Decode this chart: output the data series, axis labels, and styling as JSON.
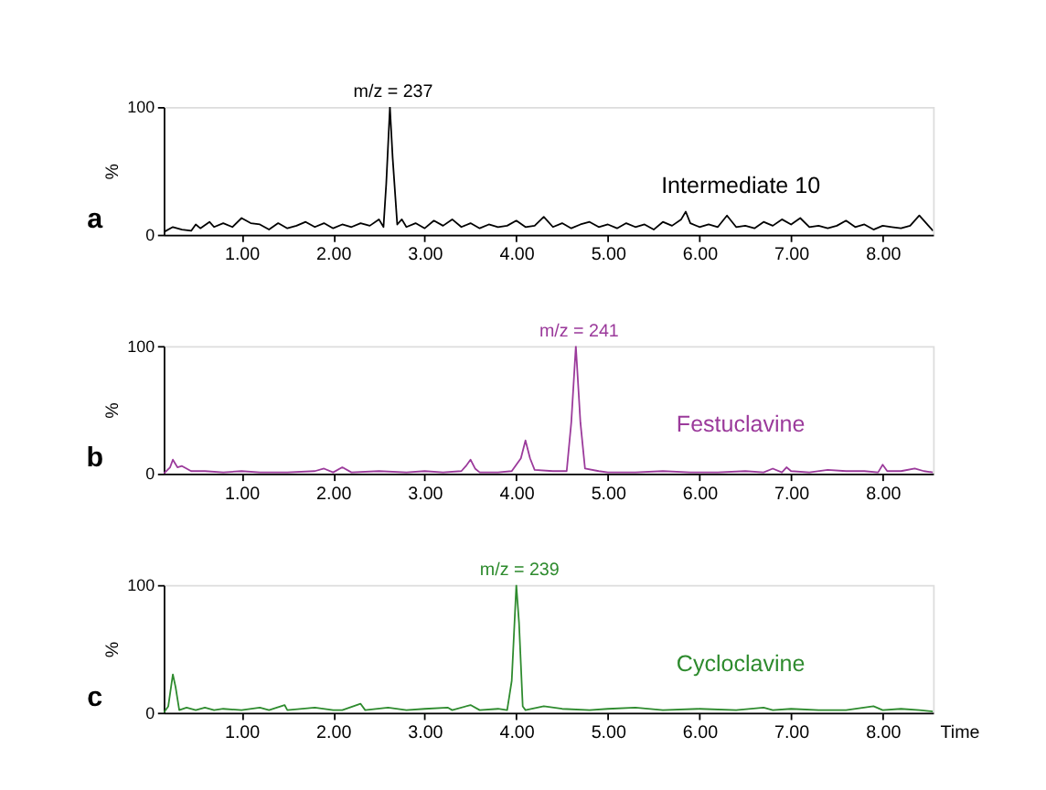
{
  "chart_data": [
    {
      "type": "line",
      "ylabel": "%",
      "xlim": [
        0.15,
        8.55
      ],
      "ylim": [
        0,
        100
      ],
      "yticks": [
        0,
        100
      ],
      "grid": false,
      "marker": "none",
      "xticks": [
        {
          "value": 1,
          "label": "1.00"
        },
        {
          "value": 2,
          "label": "2.00"
        },
        {
          "value": 3,
          "label": "3.00"
        },
        {
          "value": 4,
          "label": "4.00"
        },
        {
          "value": 5,
          "label": "5.00"
        },
        {
          "value": 6,
          "label": "6.00"
        },
        {
          "value": 7,
          "label": "7.00"
        },
        {
          "value": 8,
          "label": "8.00"
        }
      ],
      "x": [
        0.15,
        0.25,
        0.35,
        0.45,
        0.5,
        0.55,
        0.65,
        0.7,
        0.8,
        0.9,
        1.0,
        1.1,
        1.2,
        1.3,
        1.4,
        1.5,
        1.6,
        1.7,
        1.8,
        1.9,
        2.0,
        2.1,
        2.2,
        2.3,
        2.4,
        2.5,
        2.55,
        2.58,
        2.62,
        2.65,
        2.7,
        2.75,
        2.8,
        2.9,
        3.0,
        3.1,
        3.2,
        3.3,
        3.4,
        3.5,
        3.6,
        3.7,
        3.8,
        3.9,
        4.0,
        4.1,
        4.2,
        4.3,
        4.4,
        4.5,
        4.6,
        4.7,
        4.8,
        4.9,
        5.0,
        5.1,
        5.2,
        5.3,
        5.4,
        5.5,
        5.6,
        5.7,
        5.8,
        5.85,
        5.9,
        6.0,
        6.1,
        6.2,
        6.3,
        6.4,
        6.5,
        6.6,
        6.7,
        6.8,
        6.9,
        7.0,
        7.1,
        7.2,
        7.3,
        7.4,
        7.5,
        7.6,
        7.7,
        7.8,
        7.9,
        8.0,
        8.1,
        8.2,
        8.3,
        8.4,
        8.5,
        8.55
      ],
      "series": [
        {
          "color": "#000000",
          "values": [
            2,
            6,
            4,
            3,
            8,
            5,
            10,
            6,
            9,
            6,
            13,
            9,
            8,
            4,
            9,
            5,
            7,
            10,
            6,
            9,
            5,
            8,
            6,
            9,
            7,
            12,
            6,
            40,
            100,
            60,
            8,
            12,
            6,
            9,
            5,
            11,
            7,
            12,
            6,
            9,
            5,
            8,
            6,
            7,
            11,
            6,
            7,
            14,
            6,
            9,
            5,
            8,
            10,
            6,
            8,
            5,
            9,
            6,
            8,
            4,
            10,
            7,
            12,
            18,
            9,
            6,
            8,
            6,
            15,
            6,
            7,
            5,
            10,
            7,
            12,
            8,
            13,
            6,
            7,
            5,
            7,
            11,
            6,
            8,
            4,
            7,
            6,
            5,
            7,
            15,
            7,
            3
          ]
        }
      ],
      "annotations": [
        {
          "text": "m/z = 237",
          "x": 2.62,
          "y": 100
        },
        "Intermediate 10",
        "a"
      ]
    },
    {
      "type": "line",
      "ylabel": "%",
      "xlim": [
        0.15,
        8.55
      ],
      "ylim": [
        0,
        100
      ],
      "yticks": [
        0,
        100
      ],
      "grid": false,
      "marker": "none",
      "xticks": [
        {
          "value": 1,
          "label": "1.00"
        },
        {
          "value": 2,
          "label": "2.00"
        },
        {
          "value": 3,
          "label": "3.00"
        },
        {
          "value": 4,
          "label": "4.00"
        },
        {
          "value": 5,
          "label": "5.00"
        },
        {
          "value": 6,
          "label": "6.00"
        },
        {
          "value": 7,
          "label": "7.00"
        },
        {
          "value": 8,
          "label": "8.00"
        }
      ],
      "x": [
        0.15,
        0.22,
        0.25,
        0.3,
        0.35,
        0.45,
        0.6,
        0.8,
        1.0,
        1.2,
        1.5,
        1.8,
        1.9,
        2.0,
        2.1,
        2.2,
        2.5,
        2.8,
        3.0,
        3.2,
        3.4,
        3.45,
        3.5,
        3.55,
        3.6,
        3.8,
        3.95,
        4.05,
        4.1,
        4.15,
        4.2,
        4.4,
        4.55,
        4.6,
        4.65,
        4.7,
        4.75,
        4.9,
        5.0,
        5.3,
        5.6,
        5.9,
        6.2,
        6.5,
        6.7,
        6.8,
        6.9,
        6.95,
        7.0,
        7.2,
        7.4,
        7.6,
        7.8,
        7.95,
        8.0,
        8.05,
        8.2,
        8.35,
        8.45,
        8.55
      ],
      "series": [
        {
          "color": "#9b3a9b",
          "values": [
            0,
            5,
            11,
            5,
            6,
            2,
            2,
            1,
            2,
            1,
            1,
            2,
            4,
            1,
            5,
            1,
            2,
            1,
            2,
            1,
            2,
            6,
            11,
            4,
            1,
            1,
            2,
            12,
            26,
            12,
            3,
            2,
            2,
            40,
            100,
            40,
            4,
            2,
            1,
            1,
            2,
            1,
            1,
            2,
            1,
            4,
            1,
            5,
            2,
            1,
            3,
            2,
            2,
            1,
            7,
            2,
            2,
            4,
            2,
            1
          ]
        }
      ],
      "annotations": [
        {
          "text": "m/z = 241",
          "x": 4.65,
          "y": 100
        },
        "Festuclavine",
        "b"
      ]
    },
    {
      "type": "line",
      "ylabel": "%",
      "xlabel": "Time",
      "xlim": [
        0.15,
        8.55
      ],
      "ylim": [
        0,
        100
      ],
      "yticks": [
        0,
        100
      ],
      "grid": false,
      "marker": "none",
      "xticks": [
        {
          "value": 1,
          "label": "1.00"
        },
        {
          "value": 2,
          "label": "2.00"
        },
        {
          "value": 3,
          "label": "3.00"
        },
        {
          "value": 4,
          "label": "4.00"
        },
        {
          "value": 5,
          "label": "5.00"
        },
        {
          "value": 6,
          "label": "6.00"
        },
        {
          "value": 7,
          "label": "7.00"
        },
        {
          "value": 8,
          "label": "8.00"
        }
      ],
      "x": [
        0.15,
        0.2,
        0.25,
        0.28,
        0.32,
        0.4,
        0.5,
        0.6,
        0.7,
        0.8,
        1.0,
        1.2,
        1.3,
        1.47,
        1.5,
        1.8,
        2.0,
        2.1,
        2.3,
        2.35,
        2.6,
        2.8,
        3.0,
        3.25,
        3.3,
        3.5,
        3.6,
        3.8,
        3.9,
        3.95,
        4.0,
        4.03,
        4.07,
        4.1,
        4.3,
        4.5,
        4.8,
        5.0,
        5.3,
        5.6,
        6.0,
        6.4,
        6.7,
        6.8,
        7.0,
        7.3,
        7.6,
        7.9,
        8.0,
        8.2,
        8.4,
        8.55
      ],
      "series": [
        {
          "color": "#2e8b2e",
          "values": [
            0,
            5,
            30,
            20,
            2,
            4,
            2,
            4,
            2,
            3,
            2,
            4,
            2,
            6,
            2,
            4,
            2,
            2,
            7,
            2,
            4,
            2,
            3,
            4,
            2,
            6,
            2,
            3,
            2,
            25,
            100,
            70,
            5,
            2,
            5,
            3,
            2,
            3,
            4,
            2,
            3,
            2,
            4,
            2,
            3,
            2,
            2,
            5,
            2,
            3,
            2,
            1
          ]
        }
      ],
      "annotations": [
        {
          "text": "m/z = 239",
          "x": 4.0,
          "y": 100
        },
        "Cycloclavine",
        "c"
      ]
    }
  ]
}
